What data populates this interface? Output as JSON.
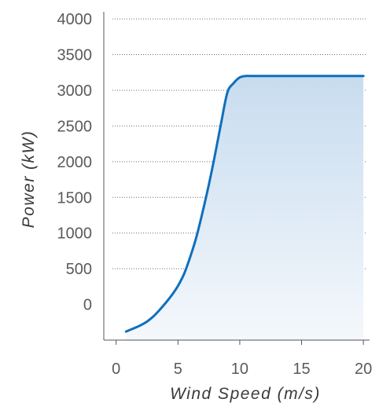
{
  "chart_data": {
    "type": "area",
    "title": "",
    "xlabel": "Wind Speed (m/s)",
    "ylabel": "Power (kW)",
    "xlim": [
      -1,
      20.5
    ],
    "ylim": [
      -500,
      4100
    ],
    "x_ticks": [
      0,
      5,
      10,
      15,
      20
    ],
    "x_tick_labels": [
      "0",
      "5",
      "10",
      "15",
      "20"
    ],
    "y_ticks": [
      0,
      500,
      1000,
      1500,
      2000,
      2500,
      3000,
      3500,
      4000
    ],
    "y_tick_labels": [
      "0",
      "500",
      "1000",
      "1500",
      "2000",
      "2500",
      "3000",
      "3500",
      "4000"
    ],
    "grid": "horizontal-dotted",
    "legend": "none",
    "series": [
      {
        "x": [
          0.8,
          1.5,
          2,
          2.5,
          3,
          3.5,
          4,
          4.5,
          5,
          5.5,
          6,
          6.5,
          7,
          7.5,
          8,
          8.5,
          9,
          9.5,
          10,
          10.5,
          11,
          12,
          13,
          14,
          15,
          16,
          17,
          18,
          19,
          20
        ],
        "y": [
          -380,
          -330,
          -290,
          -240,
          -170,
          -80,
          20,
          130,
          260,
          430,
          670,
          950,
          1300,
          1680,
          2100,
          2550,
          2970,
          3100,
          3180,
          3200,
          3200,
          3200,
          3200,
          3200,
          3200,
          3200,
          3200,
          3200,
          3200,
          3200
        ]
      }
    ],
    "colors": {
      "line": "#0f6fbd",
      "fill_top": "#c8dcef",
      "fill_bottom": "#f4f8fc",
      "grid": "#6e6e6e",
      "axis": "#555555"
    }
  }
}
